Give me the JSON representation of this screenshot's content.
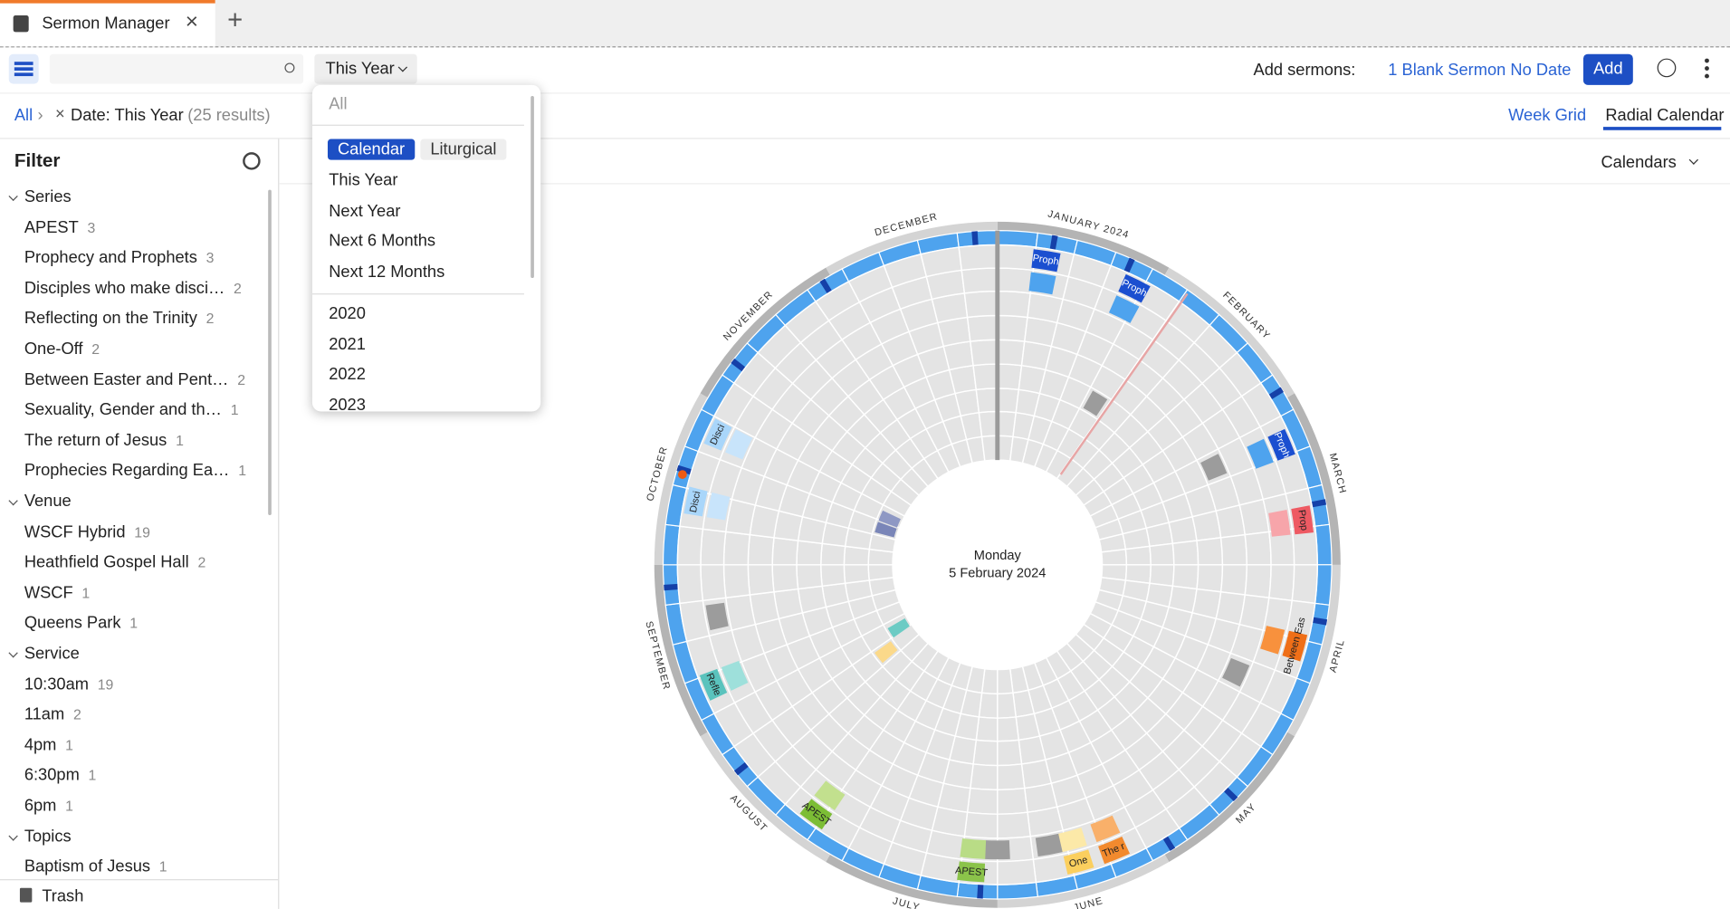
{
  "tabs": [
    {
      "title": "Sermon Manager"
    }
  ],
  "toolbar": {
    "date_filter": "This Year",
    "add_label": "Add sermons:",
    "blank_sermon": "1 Blank Sermon No Date",
    "add_button": "Add"
  },
  "breadcrumb": {
    "root": "All",
    "filter": "Date: This Year",
    "results": "(25 results)"
  },
  "views": [
    "Week Grid",
    "Radial Calendar"
  ],
  "calendars_button": "Calendars",
  "sidebar": {
    "title": "Filter",
    "groups": [
      {
        "name": "Series",
        "items": [
          {
            "label": "APEST",
            "count": 3
          },
          {
            "label": "Prophecy and Prophets",
            "count": 3
          },
          {
            "label": "Disciples who make disci…",
            "count": 2
          },
          {
            "label": "Reflecting on the Trinity",
            "count": 2
          },
          {
            "label": "One-Off",
            "count": 2
          },
          {
            "label": "Between Easter and Pent…",
            "count": 2
          },
          {
            "label": "Sexuality, Gender and th…",
            "count": 1
          },
          {
            "label": "The return of Jesus",
            "count": 1
          },
          {
            "label": "Prophecies Regarding Ea…",
            "count": 1
          }
        ]
      },
      {
        "name": "Venue",
        "items": [
          {
            "label": "WSCF Hybrid",
            "count": 19
          },
          {
            "label": "Heathfield Gospel Hall",
            "count": 2
          },
          {
            "label": "WSCF",
            "count": 1
          },
          {
            "label": "Queens Park",
            "count": 1
          }
        ]
      },
      {
        "name": "Service",
        "items": [
          {
            "label": "10:30am",
            "count": 19
          },
          {
            "label": "11am",
            "count": 2
          },
          {
            "label": "4pm",
            "count": 1
          },
          {
            "label": "6:30pm",
            "count": 1
          },
          {
            "label": "6pm",
            "count": 1
          }
        ]
      },
      {
        "name": "Topics",
        "items": [
          {
            "label": "Baptism of Jesus",
            "count": 1
          }
        ]
      }
    ],
    "trash": "Trash"
  },
  "dropdown": {
    "all": "All",
    "modes": [
      "Calendar",
      "Liturgical"
    ],
    "ranges": [
      "This Year",
      "Next Year",
      "Next 6 Months",
      "Next 12 Months"
    ],
    "years": [
      "2020",
      "2021",
      "2022",
      "2023"
    ]
  },
  "calendar": {
    "center_day": "Monday",
    "center_date": "5 February 2024",
    "months": [
      "JANUARY 2024",
      "FEBRUARY",
      "MARCH",
      "APRIL",
      "MAY",
      "JUNE",
      "JULY",
      "AUGUST",
      "SEPTEMBER",
      "OCTOBER",
      "NOVEMBER",
      "DECEMBER"
    ],
    "events": [
      {
        "label": "Proph"
      },
      {
        "label": "Proph"
      },
      {
        "label": "Proph"
      },
      {
        "label": "Prop"
      },
      {
        "label": "Between Eas"
      },
      {
        "label": "The r"
      },
      {
        "label": "One"
      },
      {
        "label": "APEST"
      },
      {
        "label": "APEST"
      },
      {
        "label": "Refle"
      },
      {
        "label": "Disci"
      },
      {
        "label": "Disci"
      }
    ]
  }
}
